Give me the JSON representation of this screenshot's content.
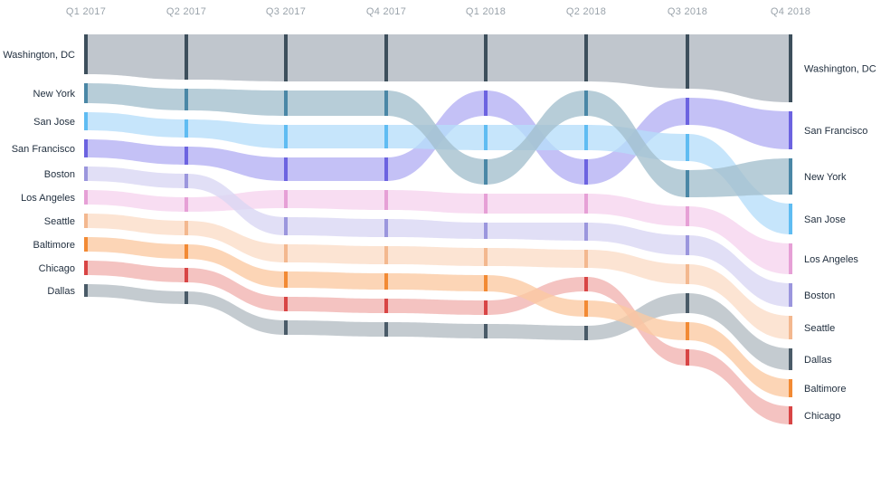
{
  "chart_data": {
    "type": "bump-area",
    "title": "",
    "quarters": [
      "Q1 2017",
      "Q2 2017",
      "Q3 2017",
      "Q4 2017",
      "Q1 2018",
      "Q2 2018",
      "Q3 2018",
      "Q4 2018"
    ],
    "series": [
      {
        "name": "Washington, DC",
        "color": "#aeb6bf",
        "mark": "#3d4f5c",
        "ranks": [
          1,
          1,
          1,
          1,
          1,
          1,
          1,
          1
        ],
        "widths": [
          44,
          50,
          52,
          52,
          52,
          52,
          60,
          75
        ]
      },
      {
        "name": "New York",
        "color": "#a3bfcd",
        "mark": "#4a87a6",
        "ranks": [
          2,
          2,
          2,
          2,
          4,
          2,
          4,
          3
        ],
        "widths": [
          22,
          24,
          28,
          28,
          28,
          28,
          30,
          40
        ]
      },
      {
        "name": "San Jose",
        "color": "#b6defa",
        "mark": "#5fbcf2",
        "ranks": [
          3,
          3,
          3,
          3,
          3,
          3,
          3,
          4
        ],
        "widths": [
          20,
          20,
          26,
          26,
          28,
          28,
          30,
          34
        ]
      },
      {
        "name": "San Francisco",
        "color": "#b3b0f3",
        "mark": "#6c63e0",
        "ranks": [
          4,
          4,
          4,
          4,
          2,
          4,
          2,
          2
        ],
        "widths": [
          20,
          20,
          26,
          26,
          28,
          28,
          30,
          42
        ]
      },
      {
        "name": "Boston",
        "color": "#d8d6f3",
        "mark": "#9b96dd",
        "ranks": [
          5,
          5,
          6,
          6,
          6,
          6,
          6,
          6
        ],
        "widths": [
          16,
          16,
          20,
          20,
          18,
          20,
          22,
          26
        ]
      },
      {
        "name": "Los Angeles",
        "color": "#f6d3ee",
        "mark": "#e6a0d6",
        "ranks": [
          6,
          6,
          5,
          5,
          5,
          5,
          5,
          5
        ],
        "widths": [
          16,
          16,
          20,
          22,
          22,
          22,
          22,
          34
        ]
      },
      {
        "name": "Seattle",
        "color": "#fbdcc6",
        "mark": "#f3b88f",
        "ranks": [
          7,
          7,
          7,
          7,
          7,
          7,
          7,
          7
        ],
        "widths": [
          16,
          16,
          20,
          20,
          20,
          20,
          22,
          26
        ]
      },
      {
        "name": "Baltimore",
        "color": "#fbc9a1",
        "mark": "#f28a34",
        "ranks": [
          8,
          8,
          8,
          8,
          8,
          9,
          9,
          9
        ],
        "widths": [
          16,
          16,
          18,
          18,
          18,
          18,
          20,
          20
        ]
      },
      {
        "name": "Chicago",
        "color": "#f1b2b0",
        "mark": "#d84545",
        "ranks": [
          9,
          9,
          9,
          9,
          9,
          8,
          10,
          10
        ],
        "widths": [
          16,
          16,
          16,
          16,
          16,
          16,
          18,
          20
        ]
      },
      {
        "name": "Dallas",
        "color": "#b4bcc3",
        "mark": "#4a5b68",
        "ranks": [
          10,
          10,
          10,
          10,
          10,
          10,
          8,
          8
        ],
        "widths": [
          14,
          14,
          16,
          16,
          16,
          16,
          22,
          24
        ]
      }
    ],
    "left_labels": [
      "Washington, DC",
      "New York",
      "San Jose",
      "San Francisco",
      "Boston",
      "Los Angeles",
      "Seattle",
      "Baltimore",
      "Chicago",
      "Dallas"
    ],
    "right_labels": [
      "Washington, DC",
      "San Francisco",
      "New York",
      "San Jose",
      "Los Angeles",
      "Boston",
      "Seattle",
      "Dallas",
      "Baltimore",
      "Chicago"
    ],
    "grid": false,
    "legend": "none"
  }
}
